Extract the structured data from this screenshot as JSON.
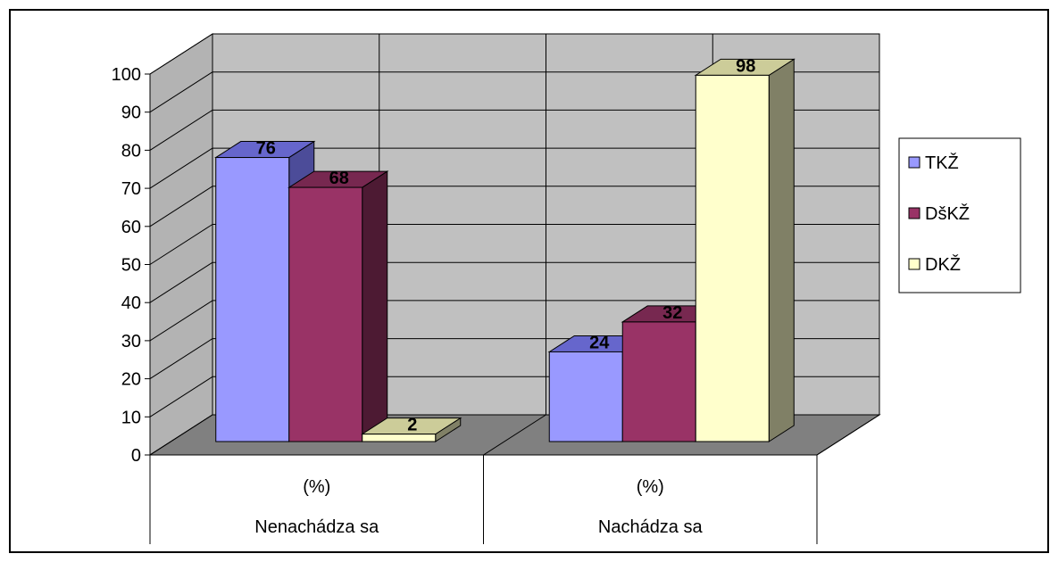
{
  "chart_data": {
    "type": "bar",
    "style": "3d-clustered-column",
    "groups": [
      "Nenachádza sa",
      "Nachádza sa"
    ],
    "categories": [
      "(%)",
      "(%)"
    ],
    "series": [
      {
        "name": "TKŽ",
        "values": [
          76,
          24
        ],
        "color": "#9999ff",
        "top_color": "#6666cc",
        "side_color": "#4c4c99"
      },
      {
        "name": "DšKŽ",
        "values": [
          68,
          32
        ],
        "color": "#993366",
        "top_color": "#772850",
        "side_color": "#4d1a33"
      },
      {
        "name": "DKŽ",
        "values": [
          2,
          98
        ],
        "color": "#ffffcc",
        "top_color": "#cccc99",
        "side_color": "#808066"
      }
    ],
    "ylim": [
      0,
      100
    ],
    "yticks": [
      0,
      10,
      20,
      30,
      40,
      50,
      60,
      70,
      80,
      90,
      100
    ],
    "data_labels": true,
    "grid": true,
    "wall_color": "#c0c0c0",
    "floor_color": "#808080",
    "legend_position": "right"
  }
}
